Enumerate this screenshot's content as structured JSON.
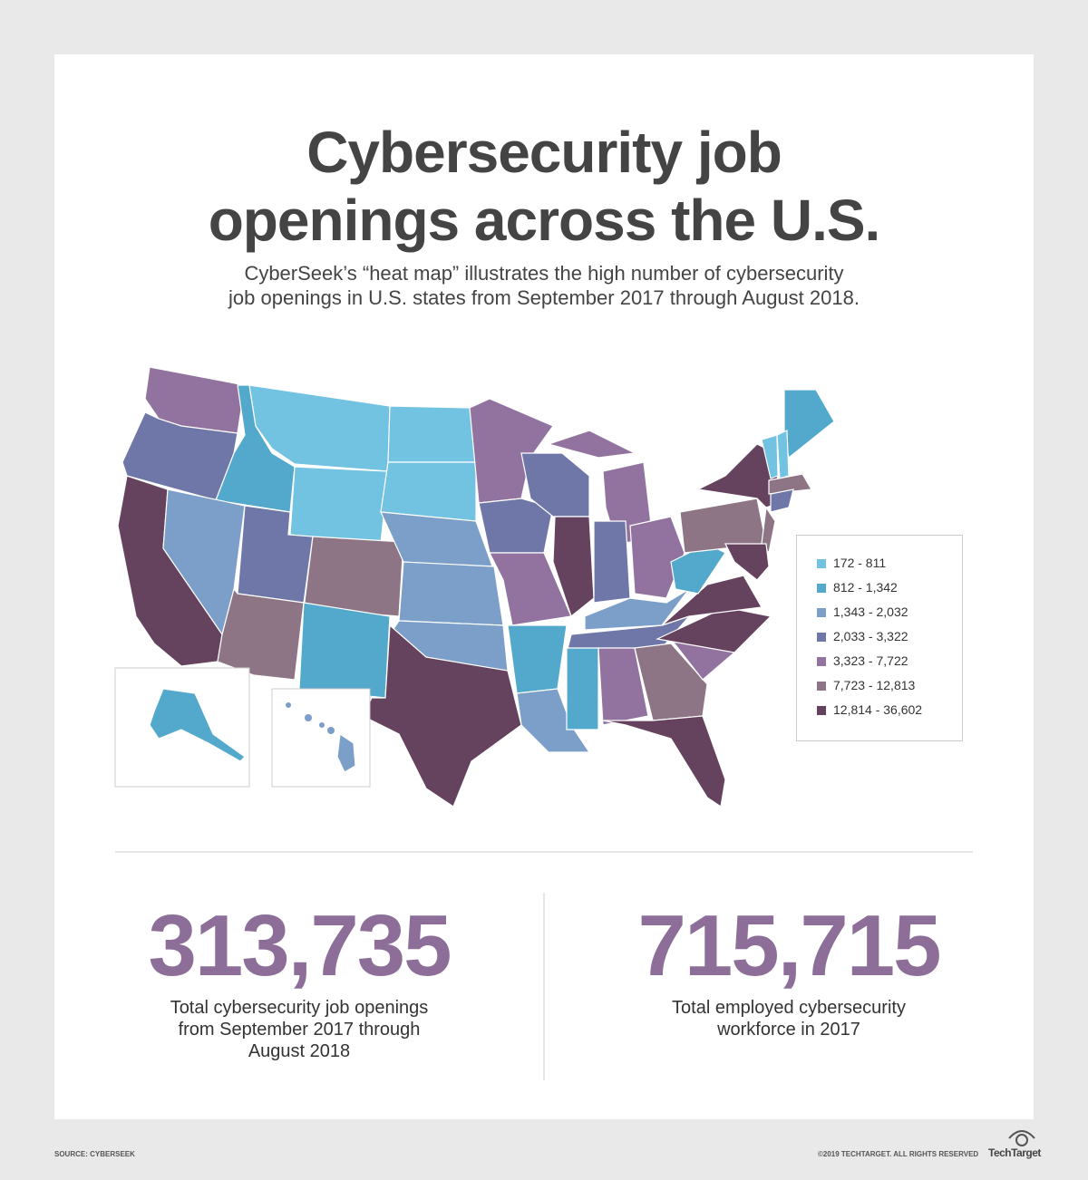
{
  "header": {
    "title_lines": [
      "Cybersecurity job",
      "openings across the U.S."
    ],
    "subtitle_lines": [
      "CyberSeek’s “heat map” illustrates the high number of cybersecurity",
      "job openings in U.S. states from September 2017 through August 2018."
    ]
  },
  "legend": [
    {
      "label": "172 - 811",
      "color": "#72c2e2"
    },
    {
      "label": "812 - 1,342",
      "color": "#52a9cc"
    },
    {
      "label": "1,343 - 2,032",
      "color": "#7b9fc8"
    },
    {
      "label": "2,033 - 3,322",
      "color": "#6e77a8"
    },
    {
      "label": "3,323 - 7,722",
      "color": "#9273a0"
    },
    {
      "label": "7,723 - 12,813",
      "color": "#8e7585"
    },
    {
      "label": "12,814 - 36,602",
      "color": "#65435e"
    }
  ],
  "stats": [
    {
      "value": "313,735",
      "caption": "Total cybersecurity job openings from September 2017 through August 2018"
    },
    {
      "value": "715,715",
      "caption": "Total employed cybersecurity workforce in 2017"
    }
  ],
  "footer": {
    "source": "SOURCE: CYBERSEEK",
    "copyright": "©2019 TECHTARGET. ALL RIGHTS RESERVED",
    "brand": "TechTarget"
  }
}
